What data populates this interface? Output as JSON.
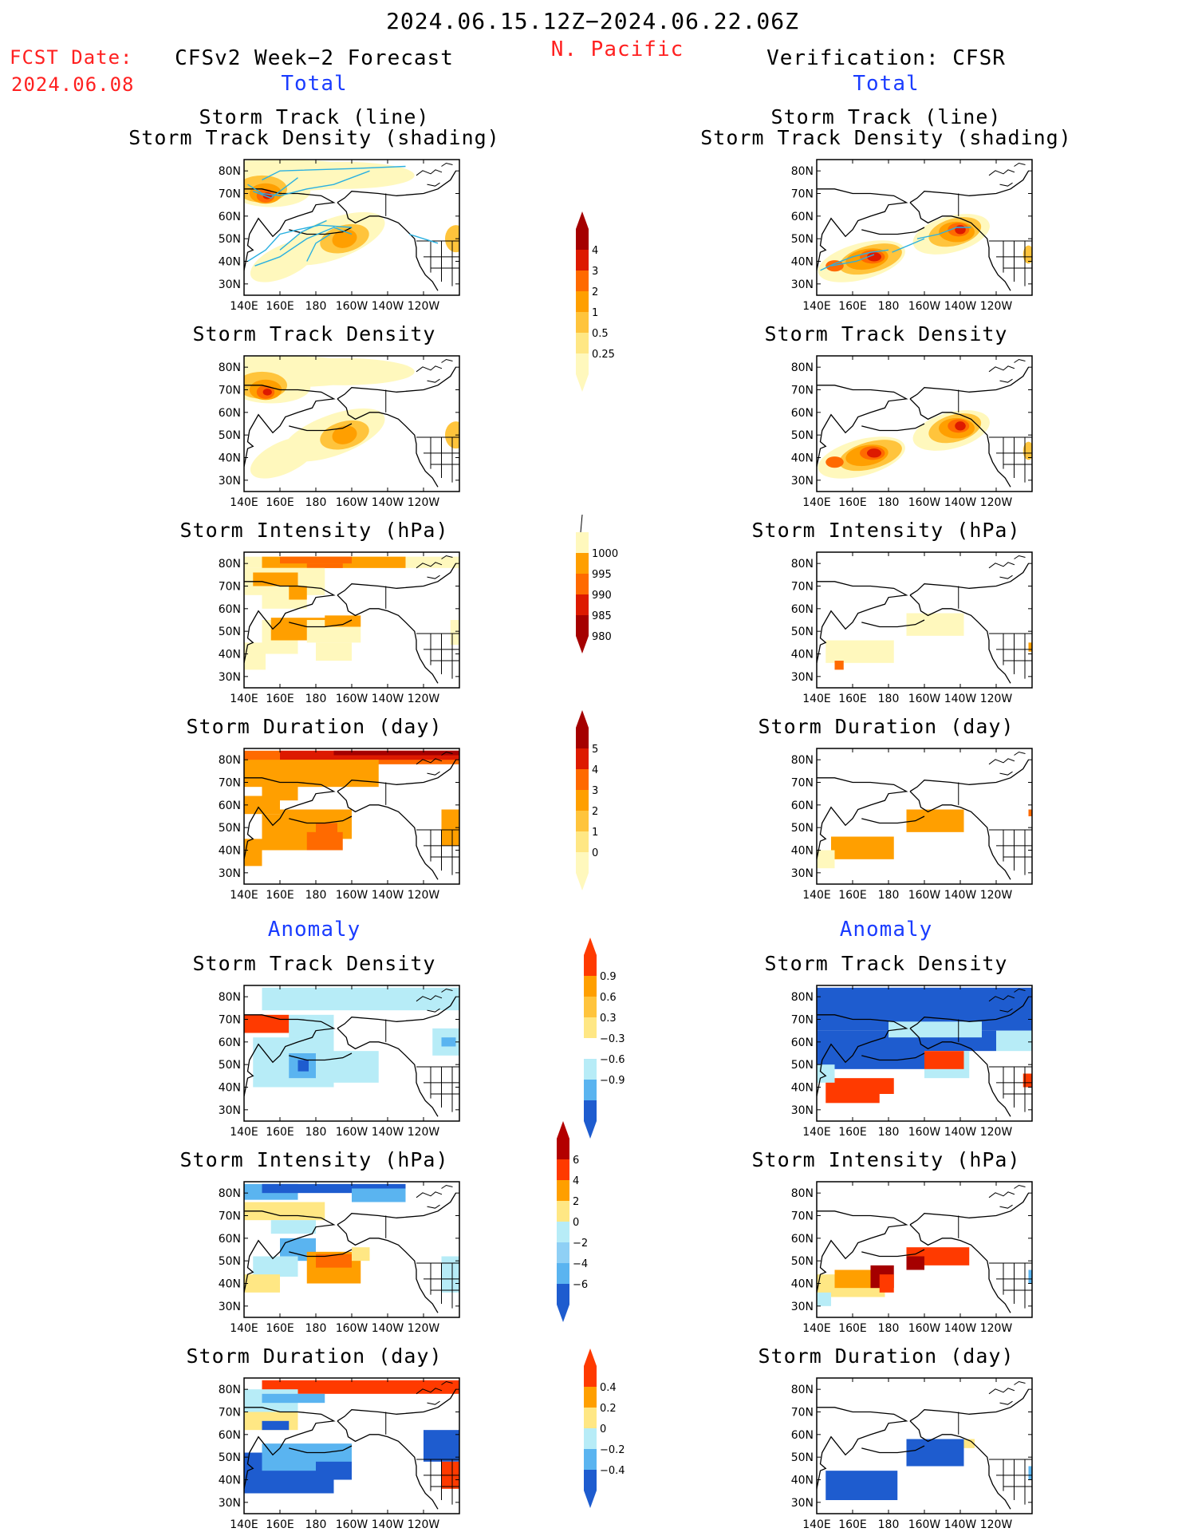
{
  "header": {
    "period": "2024.06.15.12Z−2024.06.22.06Z",
    "region": "N. Pacific",
    "fcst_label": "FCST Date:",
    "fcst_date": "2024.06.08",
    "forecast_title": "CFSv2 Week−2 Forecast",
    "verification_title": "Verification: CFSR",
    "total_label_left": "Total",
    "total_label_right": "Total",
    "anomaly_label_left": "Anomaly",
    "anomaly_label_right": "Anomaly"
  },
  "axes": {
    "lat_ticks": [
      "80N",
      "70N",
      "60N",
      "50N",
      "40N",
      "30N"
    ],
    "lon_ticks": [
      "140E",
      "160E",
      "180",
      "160W",
      "140W",
      "120W"
    ]
  },
  "titles": {
    "track_line": "Storm Track (line)",
    "track_shading": "Storm Track Density (shading)",
    "density": "Storm Track Density",
    "intensity": "Storm Intensity (hPa)",
    "duration": "Storm Duration (day)"
  },
  "colorbars": {
    "density": {
      "labels": [
        "4",
        "3",
        "2",
        "1",
        "0.5",
        "0.25"
      ],
      "colors": [
        "#a50000",
        "#dd1a00",
        "#ff6a00",
        "#ff9f00",
        "#ffc43c",
        "#ffe784",
        "#fff8bd"
      ]
    },
    "intensity": {
      "labels": [
        "1000",
        "995",
        "990",
        "985",
        "980"
      ],
      "colors": [
        "#fff8bd",
        "#ff9f00",
        "#ff6a00",
        "#dd1a00",
        "#a50000"
      ]
    },
    "duration": {
      "labels": [
        "5",
        "4",
        "3",
        "2",
        "1",
        "0"
      ],
      "colors": [
        "#a50000",
        "#dd1a00",
        "#ff6a00",
        "#ff9f00",
        "#ffc43c",
        "#ffe784",
        "#fff8bd"
      ]
    },
    "density_anom": {
      "labels": [
        "0.9",
        "0.6",
        "0.3",
        "−0.3",
        "−0.6",
        "−0.9"
      ],
      "colors": [
        "#ff3a00",
        "#ff9f00",
        "#ffc43c",
        "#ffe784",
        "#ffffff",
        "#b7ecf7",
        "#5ab4f0",
        "#1e5ccf"
      ]
    },
    "intensity_anom": {
      "labels": [
        "6",
        "4",
        "2",
        "0",
        "−2",
        "−4",
        "−6"
      ],
      "colors": [
        "#b30000",
        "#ff3a00",
        "#ff9f00",
        "#ffe784",
        "#b7ecf7",
        "#8fd0f5",
        "#5ab4f0",
        "#1e5ccf"
      ]
    },
    "duration_anom": {
      "labels": [
        "0.4",
        "0.2",
        "0",
        "−0.2",
        "−0.4"
      ],
      "colors": [
        "#ff3a00",
        "#ff9f00",
        "#ffe784",
        "#b7ecf7",
        "#5ab4f0",
        "#1e5ccf"
      ]
    }
  },
  "palette": {
    "pale": "#fff8bd",
    "lightorange": "#ffe784",
    "yellow": "#ffc43c",
    "orange": "#ff9f00",
    "darkorange": "#ff6a00",
    "red": "#dd1a00",
    "darkred": "#a50000",
    "anomred": "#ff3a00",
    "lightblue": "#b7ecf7",
    "midblue": "#5ab4f0",
    "blue": "#1e5ccf",
    "track": "#2ab0e0",
    "land": "#000000"
  }
}
